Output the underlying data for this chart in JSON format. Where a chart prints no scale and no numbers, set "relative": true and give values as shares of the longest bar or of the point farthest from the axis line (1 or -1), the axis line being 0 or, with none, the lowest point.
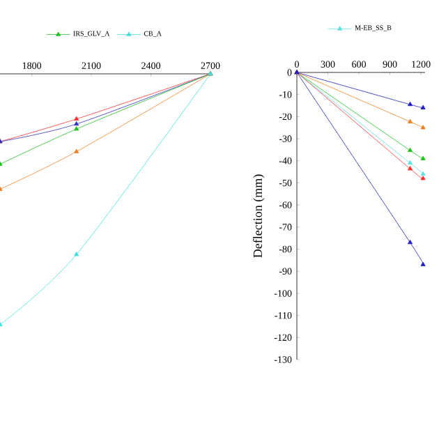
{
  "chart_data": [
    {
      "type": "line",
      "relative": true,
      "xlim": [
        1640,
        2700
      ],
      "xticks": [
        1800,
        2100,
        2400,
        2700
      ],
      "tick_labels": "x",
      "legend": "top",
      "marker": "triangle",
      "x": [
        1640,
        2025,
        2700
      ],
      "series": [
        {
          "color": "#ff3030",
          "values": [
            -0.27,
            -0.18,
            0
          ]
        },
        {
          "color": "#3030c0",
          "values": [
            -0.27,
            -0.2,
            0
          ]
        },
        {
          "name": "IRS_GLV_A",
          "color": "#20c020",
          "values": [
            -0.36,
            -0.22,
            0
          ]
        },
        {
          "color": "#f08020",
          "values": [
            -0.46,
            -0.31,
            0
          ]
        },
        {
          "name": "CB_A",
          "color": "#40e0e0",
          "values": [
            -1,
            -0.72,
            0
          ]
        }
      ]
    },
    {
      "type": "line",
      "xlim": [
        0,
        1240
      ],
      "xticks": [
        0,
        300,
        600,
        900,
        1200
      ],
      "ylim": [
        -130,
        0
      ],
      "yticks": [
        0,
        -10,
        -20,
        -30,
        -40,
        -50,
        -60,
        -70,
        -80,
        -90,
        -100,
        -110,
        -120,
        -130
      ],
      "ylabel": "Deflection (mm)",
      "legend": "top",
      "marker": "triangle",
      "x": [
        0,
        1095,
        1220
      ],
      "series": [
        {
          "color": "#2020c0",
          "values": [
            0,
            -14.5,
            -16
          ]
        },
        {
          "color": "#f08020",
          "values": [
            0,
            -22.3,
            -25
          ]
        },
        {
          "color": "#20c020",
          "values": [
            0,
            -35.3,
            -39
          ]
        },
        {
          "name": "M-EB_SS_B",
          "color": "#60e0e0",
          "values": [
            0,
            -41,
            -46
          ]
        },
        {
          "color": "#ff3030",
          "values": [
            0,
            -43.6,
            -48
          ]
        },
        {
          "color": "#2020c0",
          "values": [
            0,
            -77,
            -87
          ]
        }
      ]
    }
  ]
}
